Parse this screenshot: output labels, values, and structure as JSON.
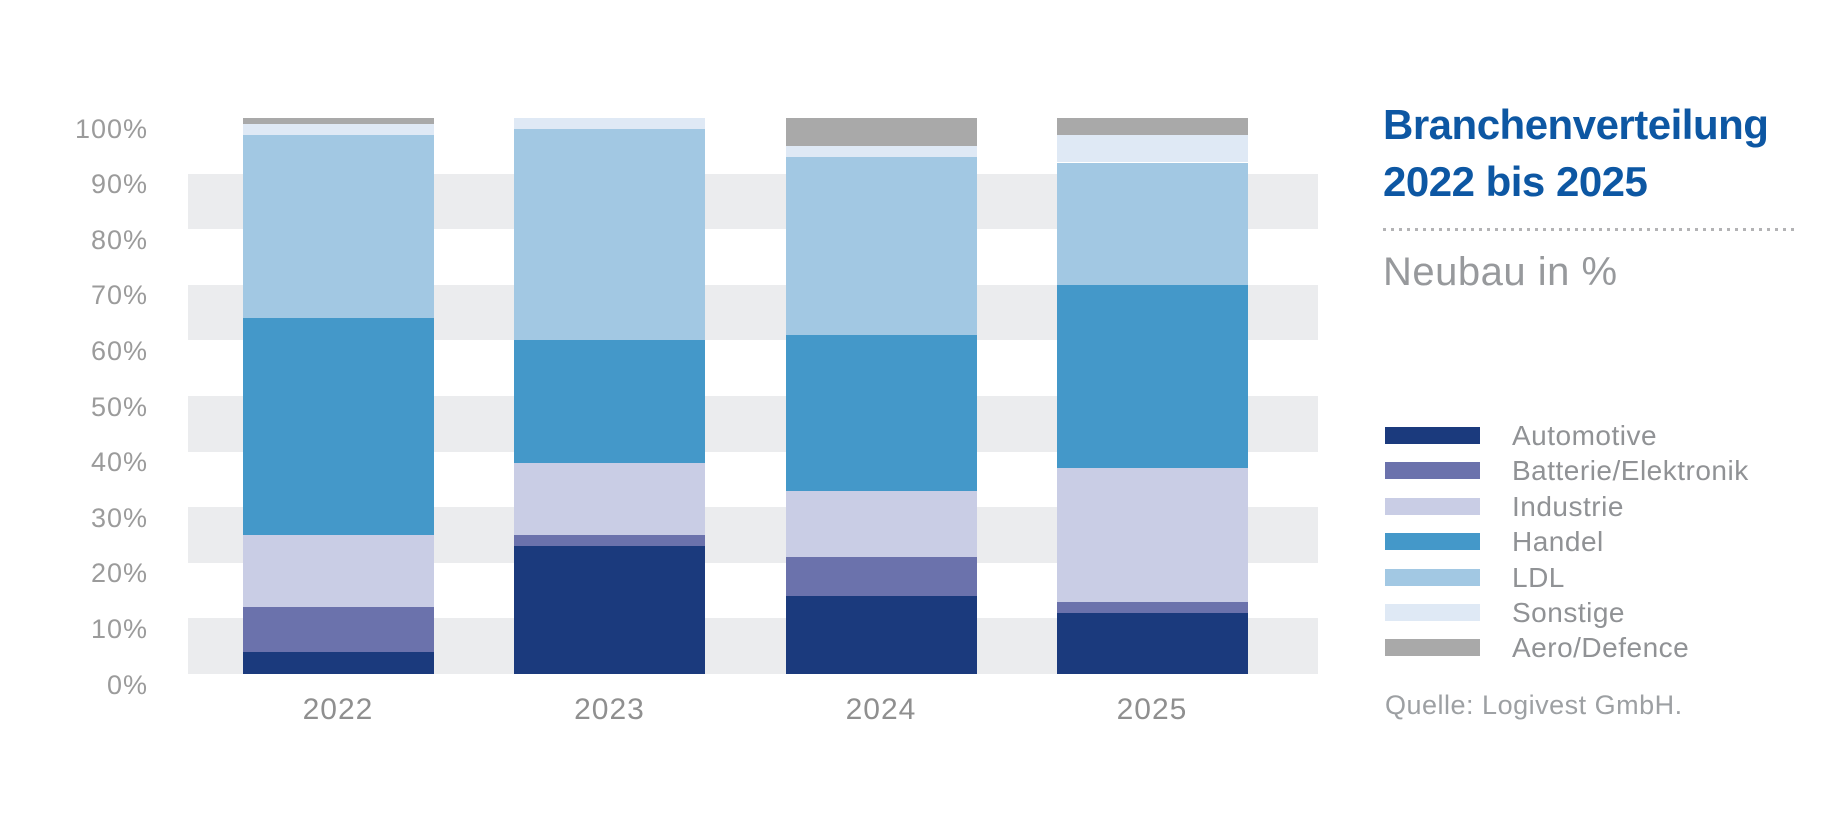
{
  "title": {
    "line1": "Branchenverteilung",
    "line2": "2022 bis 2025",
    "color": "#0d57a3"
  },
  "subtitle": "Neubau in %",
  "source": "Quelle: Logivest GmbH.",
  "axis": {
    "y_ticks": [
      "100%",
      "90%",
      "80%",
      "70%",
      "60%",
      "50%",
      "40%",
      "30%",
      "20%",
      "10%",
      "0%"
    ],
    "stripe_color": "#ebecee",
    "tick_color": "#9b9b9b"
  },
  "chart_data": {
    "type": "bar",
    "stacked": true,
    "title": "Branchenverteilung 2022 bis 2025",
    "subtitle": "Neubau in %",
    "xlabel": "",
    "ylabel": "Neubau in %",
    "ylim": [
      0,
      100
    ],
    "grid": "horizontal-stripes-every-10pct",
    "legend_position": "right",
    "categories": [
      "2022",
      "2023",
      "2024",
      "2025"
    ],
    "series": [
      {
        "name": "Automotive",
        "values": [
          4,
          23,
          14,
          11
        ],
        "color": "#1b3a7d"
      },
      {
        "name": "Batterie/Elektronik",
        "values": [
          8,
          2,
          7,
          2
        ],
        "color": "#6b72ac"
      },
      {
        "name": "Industrie",
        "values": [
          13,
          13,
          12,
          24
        ],
        "color": "#c9cde5"
      },
      {
        "name": "Handel",
        "values": [
          39,
          22,
          28,
          33
        ],
        "color": "#4498c9"
      },
      {
        "name": "LDL",
        "values": [
          33,
          38,
          32,
          22
        ],
        "color": "#a2c8e3"
      },
      {
        "name": "Sonstige",
        "values": [
          2,
          2,
          2,
          5
        ],
        "color": "#dfe9f5"
      },
      {
        "name": "Aero/Defence",
        "values": [
          1,
          0,
          5,
          3
        ],
        "color": "#a9a9a9"
      }
    ]
  }
}
